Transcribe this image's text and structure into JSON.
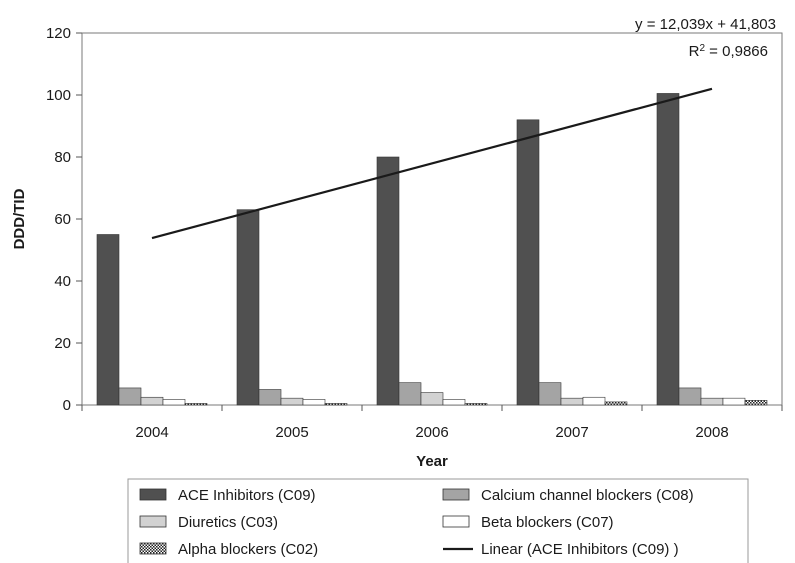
{
  "chart_data": {
    "type": "bar",
    "xlabel": "Year",
    "ylabel": "DDD/TID",
    "ylim": [
      0,
      120
    ],
    "yticks": [
      0,
      20,
      40,
      60,
      80,
      100,
      120
    ],
    "categories": [
      "2004",
      "2005",
      "2006",
      "2007",
      "2008"
    ],
    "grid": false,
    "legend_position": "bottom",
    "series": [
      {
        "name": "ACE Inhibitors (C09)",
        "values": [
          55,
          63,
          80,
          92,
          100.5
        ],
        "color": "#505050"
      },
      {
        "name": "Calcium channel blockers (C08)",
        "values": [
          5.5,
          5,
          7.2,
          7.2,
          5.5
        ],
        "color": "#a4a4a4"
      },
      {
        "name": "Diuretics (C03)",
        "values": [
          2.5,
          2.2,
          4,
          2.2,
          2.2
        ],
        "color": "#d2d2d2"
      },
      {
        "name": "Beta blockers (C07)",
        "values": [
          1.8,
          1.8,
          1.8,
          2.5,
          2.2
        ],
        "color": "#ffffff"
      },
      {
        "name": "Alpha blockers (C02)",
        "values": [
          0.5,
          0.5,
          0.5,
          1,
          1.5
        ],
        "color": "pattern"
      }
    ],
    "trendline": {
      "name": "Linear (ACE Inhibitors (C09) )",
      "slope": 12.039,
      "intercept": 41.803,
      "equation": "y = 12,039x + 41,803",
      "r2_label": "R",
      "r2_sup": "2",
      "r2_value": " = 0,9866",
      "color": "#1a1a1a"
    }
  }
}
